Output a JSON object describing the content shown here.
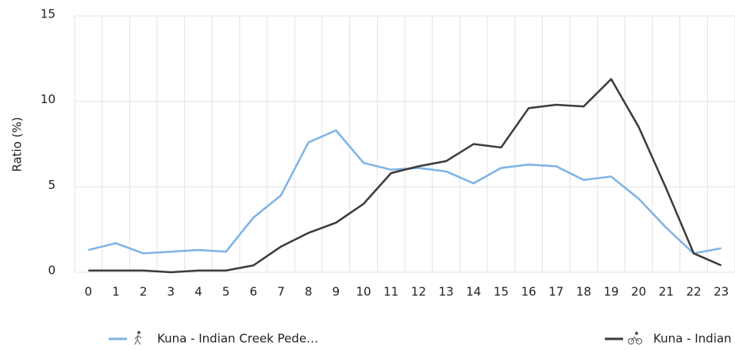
{
  "chart_data": {
    "type": "line",
    "y_label": "Ratio (%)",
    "categories": [
      "0",
      "1",
      "2",
      "3",
      "4",
      "5",
      "6",
      "7",
      "8",
      "9",
      "10",
      "11",
      "12",
      "13",
      "14",
      "15",
      "16",
      "17",
      "18",
      "19",
      "20",
      "21",
      "22",
      "23"
    ],
    "series": [
      {
        "name": "Kuna - Indian Creek Pede…",
        "color": "#7eb3e6",
        "values": [
          1.3,
          1.7,
          1.1,
          1.2,
          1.3,
          1.2,
          3.2,
          4.5,
          7.6,
          8.3,
          6.4,
          6.0,
          6.1,
          5.9,
          5.2,
          6.1,
          6.3,
          6.2,
          5.4,
          5.6,
          4.3,
          2.6,
          1.1,
          1.4
        ]
      },
      {
        "name": "Kuna - Indian Creek Cycl…",
        "color": "#3c3c3c",
        "values": [
          0.1,
          0.1,
          0.1,
          0.0,
          0.1,
          0.1,
          0.4,
          1.5,
          2.3,
          2.9,
          4.0,
          5.8,
          6.2,
          6.5,
          7.5,
          7.3,
          9.6,
          9.8,
          9.7,
          11.3,
          8.5,
          4.9,
          1.1,
          0.4
        ]
      }
    ],
    "ylim": [
      0,
      15
    ],
    "yticks": [
      0,
      5,
      10,
      15
    ],
    "grid": true,
    "legend": "bottom"
  }
}
